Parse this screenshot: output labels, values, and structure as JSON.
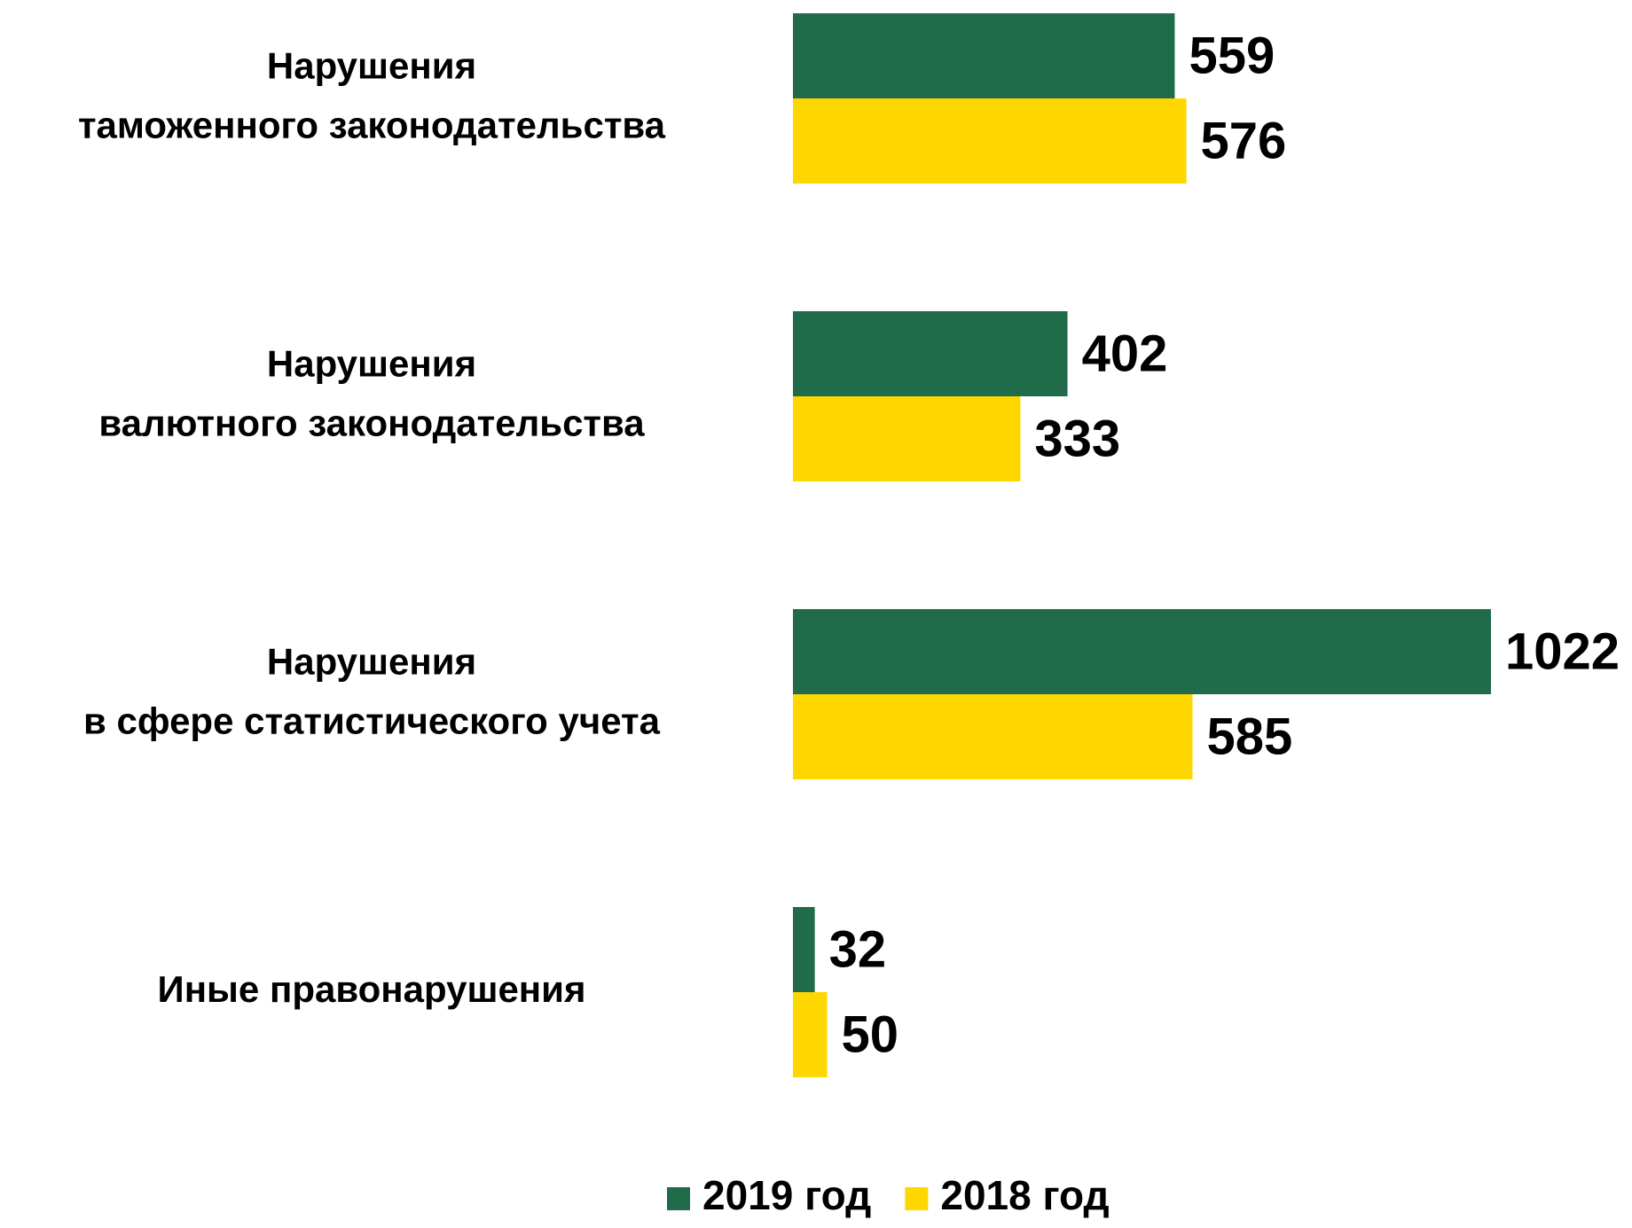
{
  "chart_data": {
    "type": "bar",
    "orientation": "horizontal",
    "categories": [
      "Нарушения\nтаможенного законодательства",
      "Нарушения\nвалютного законодательства",
      "Нарушения\nв сфере статистического учета",
      "Иные правонарушения"
    ],
    "series": [
      {
        "name": "2019 год",
        "color": "#1f6b4a",
        "values": [
          559,
          402,
          1022,
          32
        ]
      },
      {
        "name": "2018 год",
        "color": "#ffd700",
        "values": [
          576,
          333,
          585,
          50
        ]
      }
    ],
    "legend": "bottom"
  }
}
